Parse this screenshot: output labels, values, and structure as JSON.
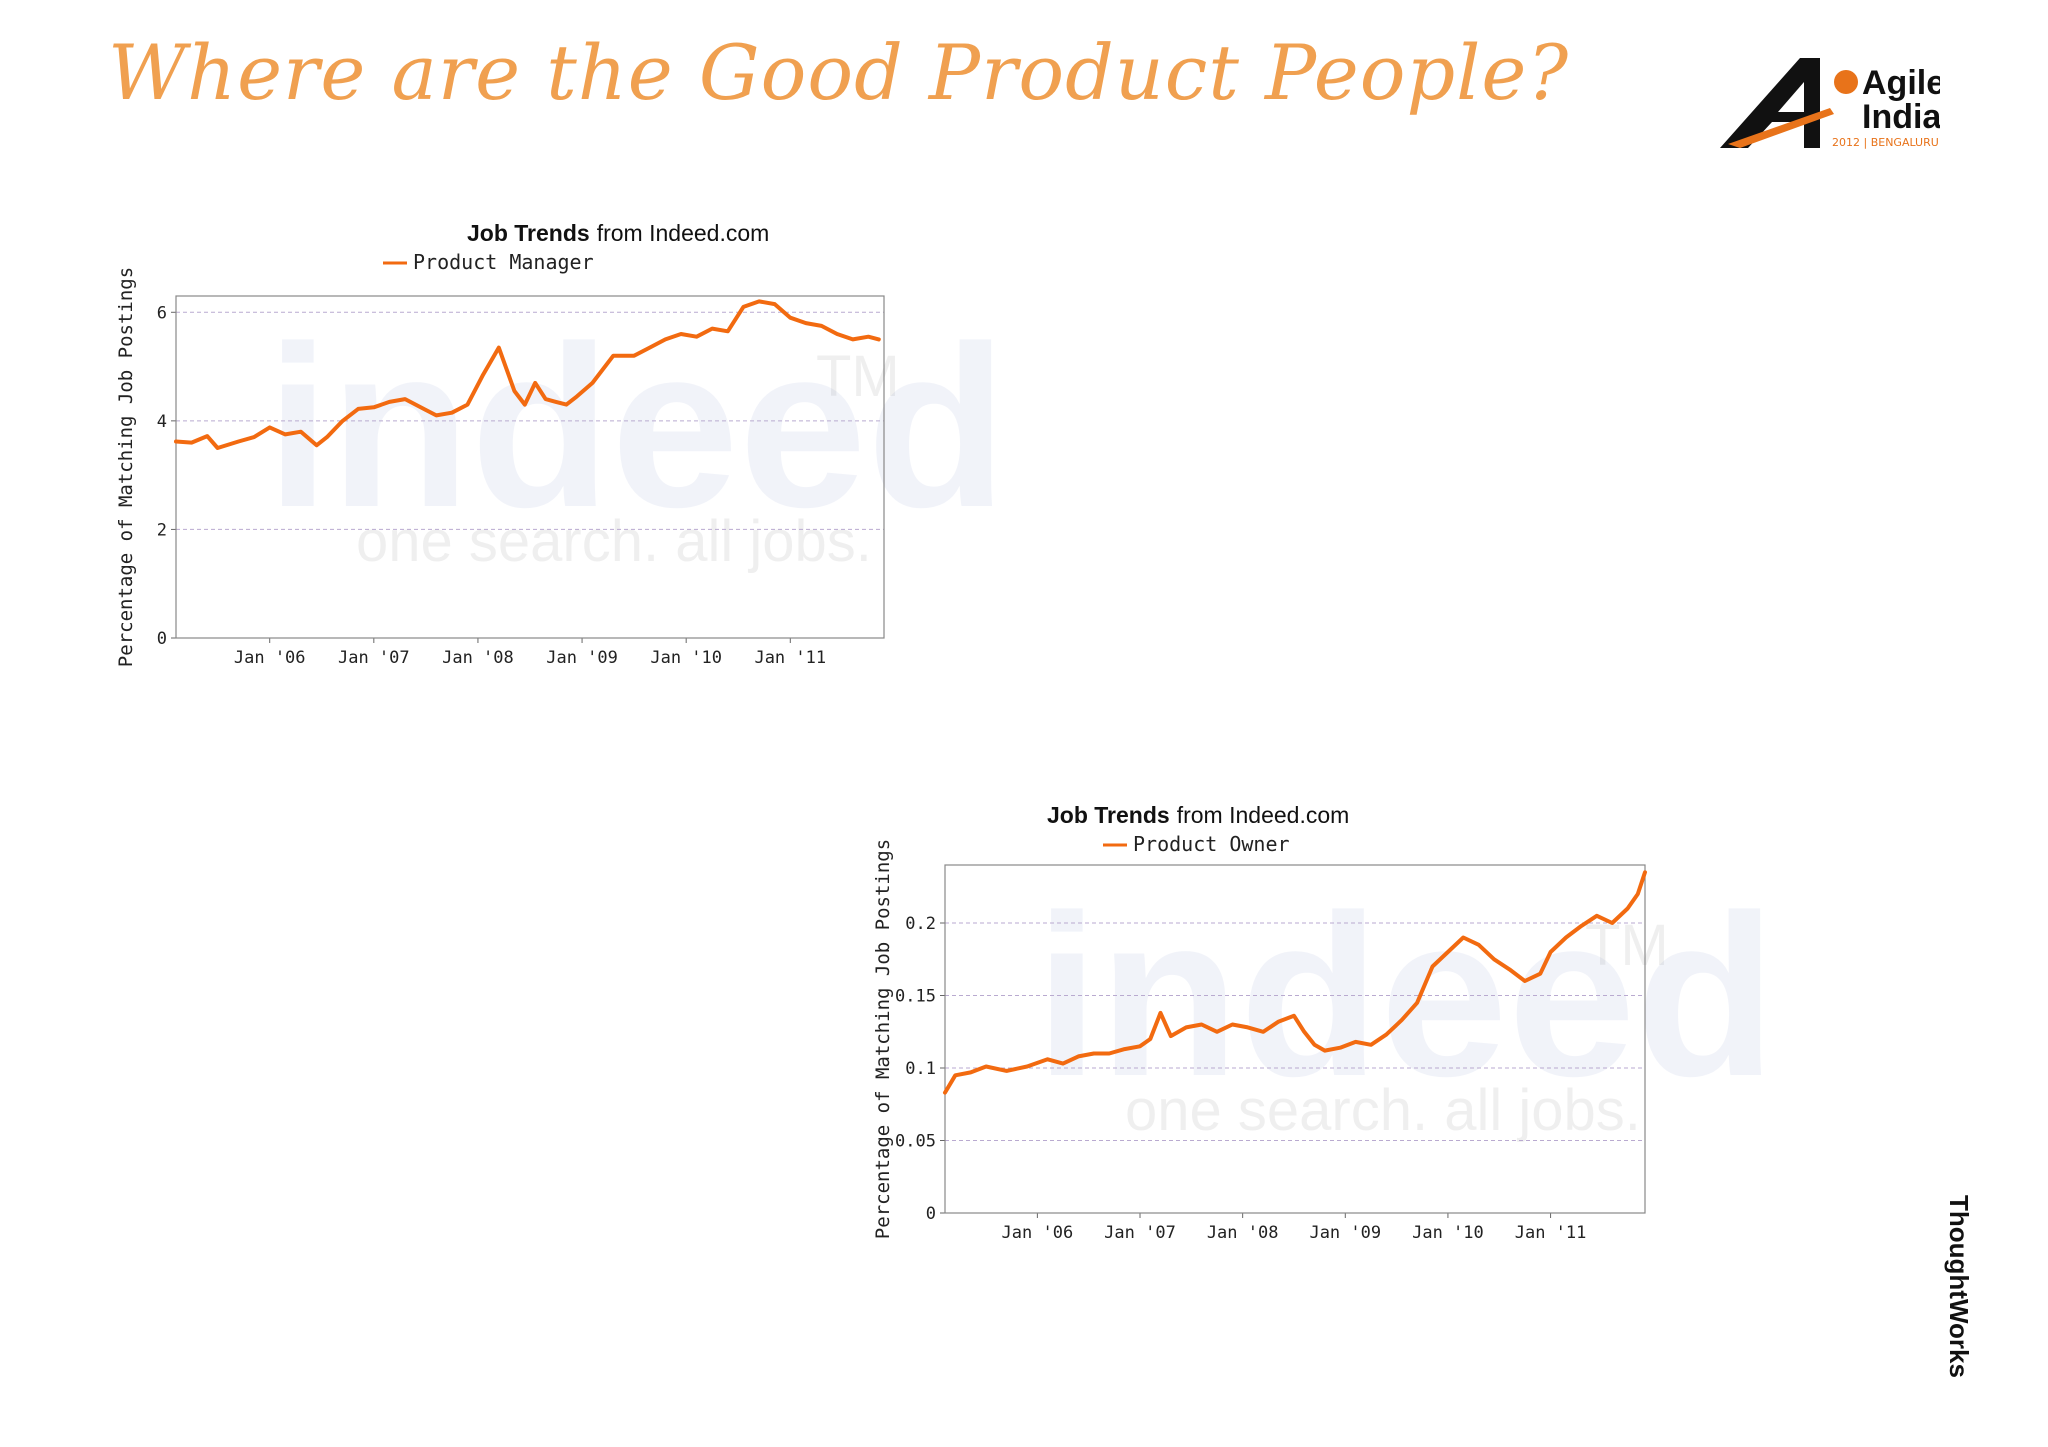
{
  "slide": {
    "title": "Where are the Good Product People?",
    "accent_color": "#f0a050",
    "logo": {
      "name": "Agile India",
      "line1": "Agile",
      "line2": "India",
      "subtitle": "2012 | BENGALURU"
    },
    "brand": "ThoughtWorks"
  },
  "chart_data": [
    {
      "type": "line",
      "title_bold": "Job Trends",
      "title_rest": "from Indeed.com",
      "ylabel": "Percentage of Matching Job Postings",
      "xlabel": "",
      "series": [
        {
          "name": "Product Manager",
          "color": "#f26a10",
          "x": [
            2005.1,
            2005.25,
            2005.4,
            2005.5,
            2005.7,
            2005.85,
            2006.0,
            2006.15,
            2006.3,
            2006.45,
            2006.55,
            2006.7,
            2006.85,
            2007.0,
            2007.15,
            2007.3,
            2007.5,
            2007.6,
            2007.75,
            2007.9,
            2008.05,
            2008.2,
            2008.35,
            2008.45,
            2008.55,
            2008.65,
            2008.75,
            2008.85,
            2008.95,
            2009.1,
            2009.3,
            2009.5,
            2009.65,
            2009.8,
            2009.95,
            2010.1,
            2010.25,
            2010.4,
            2010.55,
            2010.7,
            2010.85,
            2011.0,
            2011.15,
            2011.3,
            2011.45,
            2011.6,
            2011.75,
            2011.85
          ],
          "values": [
            3.62,
            3.6,
            3.72,
            3.5,
            3.62,
            3.7,
            3.88,
            3.75,
            3.8,
            3.55,
            3.7,
            4.0,
            4.22,
            4.25,
            4.35,
            4.4,
            4.2,
            4.1,
            4.15,
            4.3,
            4.85,
            5.35,
            4.55,
            4.3,
            4.7,
            4.4,
            4.35,
            4.3,
            4.45,
            4.7,
            5.2,
            5.2,
            5.35,
            5.5,
            5.6,
            5.55,
            5.7,
            5.65,
            6.1,
            6.2,
            6.15,
            5.9,
            5.8,
            5.75,
            5.6,
            5.5,
            5.55,
            5.5
          ],
          "line_width": 4
        }
      ],
      "x_ticks": [
        {
          "value": 2006.0,
          "label": "Jan '06"
        },
        {
          "value": 2007.0,
          "label": "Jan '07"
        },
        {
          "value": 2008.0,
          "label": "Jan '08"
        },
        {
          "value": 2009.0,
          "label": "Jan '09"
        },
        {
          "value": 2010.0,
          "label": "Jan '10"
        },
        {
          "value": 2011.0,
          "label": "Jan '11"
        }
      ],
      "y_ticks": [
        0,
        2,
        4,
        6
      ],
      "y_tick_labels": [
        "0",
        "2",
        "4",
        "6"
      ],
      "xlim": [
        2005.1,
        2011.9
      ],
      "ylim": [
        0,
        6.3
      ],
      "grid": true,
      "legend_position": "top-center",
      "watermark": {
        "main": "indeed",
        "tagline": "one search. all jobs.",
        "tm": "TM"
      }
    },
    {
      "type": "line",
      "title_bold": "Job Trends",
      "title_rest": "from Indeed.com",
      "ylabel": "Percentage of Matching Job Postings",
      "xlabel": "",
      "series": [
        {
          "name": "Product Owner",
          "color": "#f26a10",
          "x": [
            2005.1,
            2005.2,
            2005.35,
            2005.5,
            2005.7,
            2005.9,
            2006.1,
            2006.25,
            2006.4,
            2006.55,
            2006.7,
            2006.85,
            2007.0,
            2007.1,
            2007.2,
            2007.3,
            2007.45,
            2007.6,
            2007.75,
            2007.9,
            2008.05,
            2008.2,
            2008.35,
            2008.5,
            2008.6,
            2008.7,
            2008.8,
            2008.95,
            2009.1,
            2009.25,
            2009.4,
            2009.55,
            2009.7,
            2009.85,
            2010.0,
            2010.15,
            2010.3,
            2010.45,
            2010.6,
            2010.75,
            2010.9,
            2011.0,
            2011.15,
            2011.3,
            2011.45,
            2011.6,
            2011.75,
            2011.85,
            2011.92
          ],
          "values": [
            0.083,
            0.095,
            0.097,
            0.101,
            0.098,
            0.101,
            0.106,
            0.103,
            0.108,
            0.11,
            0.11,
            0.113,
            0.115,
            0.12,
            0.138,
            0.122,
            0.128,
            0.13,
            0.125,
            0.13,
            0.128,
            0.125,
            0.132,
            0.136,
            0.125,
            0.116,
            0.112,
            0.114,
            0.118,
            0.116,
            0.123,
            0.133,
            0.145,
            0.17,
            0.18,
            0.19,
            0.185,
            0.175,
            0.168,
            0.16,
            0.165,
            0.18,
            0.19,
            0.198,
            0.205,
            0.2,
            0.21,
            0.22,
            0.235
          ],
          "line_width": 4
        }
      ],
      "x_ticks": [
        {
          "value": 2006.0,
          "label": "Jan '06"
        },
        {
          "value": 2007.0,
          "label": "Jan '07"
        },
        {
          "value": 2008.0,
          "label": "Jan '08"
        },
        {
          "value": 2009.0,
          "label": "Jan '09"
        },
        {
          "value": 2010.0,
          "label": "Jan '10"
        },
        {
          "value": 2011.0,
          "label": "Jan '11"
        }
      ],
      "y_ticks": [
        0,
        0.05,
        0.1,
        0.15,
        0.2
      ],
      "y_tick_labels": [
        "0",
        "0.05",
        "0.1",
        "0.15",
        "0.2"
      ],
      "xlim": [
        2005.1,
        2011.92
      ],
      "ylim": [
        0,
        0.24
      ],
      "grid": true,
      "legend_position": "top-center",
      "watermark": {
        "main": "indeed",
        "tagline": "one search. all jobs.",
        "tm": "TM"
      }
    }
  ]
}
